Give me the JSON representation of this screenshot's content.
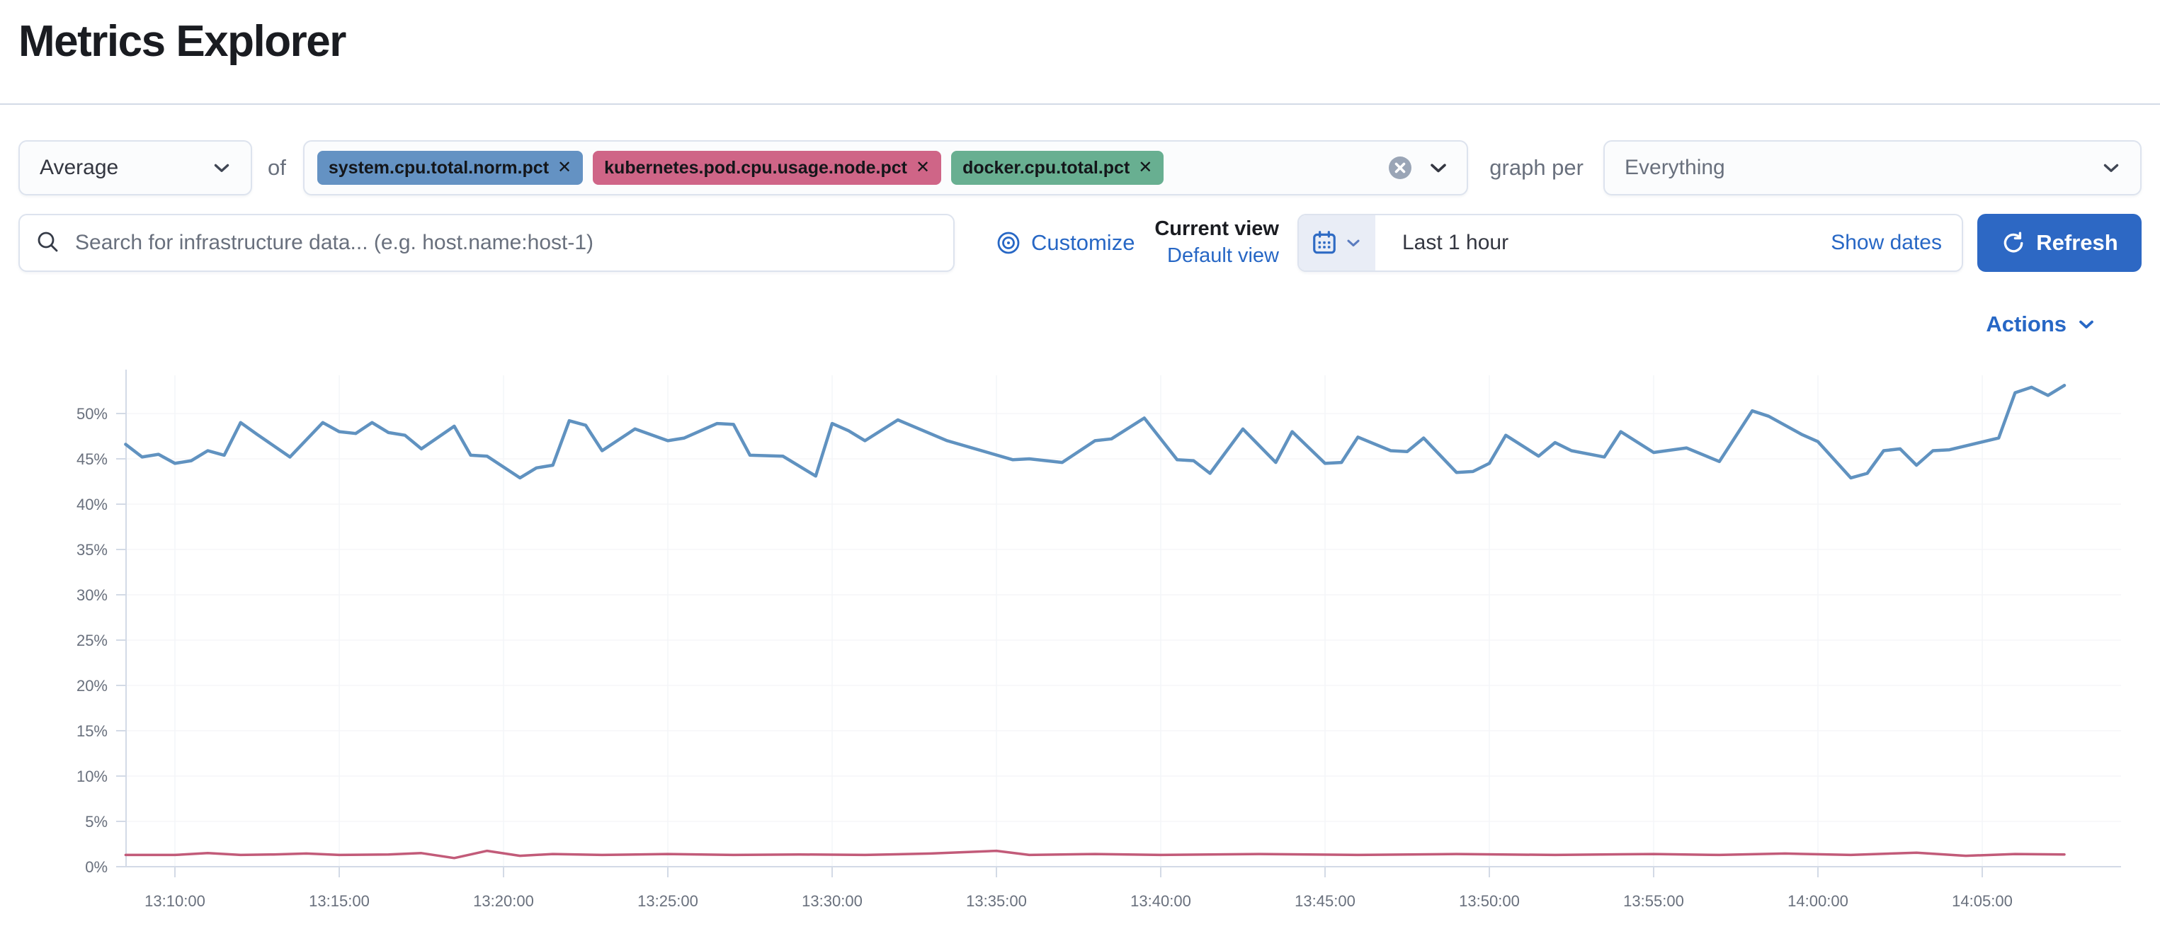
{
  "page": {
    "title": "Metrics Explorer"
  },
  "toolbar": {
    "aggregation_value": "Average",
    "of_label": "of",
    "metrics": [
      {
        "label": "system.cpu.total.norm.pct",
        "color": "#6492C3"
      },
      {
        "label": "kubernetes.pod.cpu.usage.node.pct",
        "color": "#CF6587"
      },
      {
        "label": "docker.cpu.total.pct",
        "color": "#68AF91"
      }
    ],
    "graph_per_label": "graph per",
    "group_by_value": "Everything"
  },
  "filter_bar": {
    "search_placeholder": "Search for infrastructure data... (e.g. host.name:host-1)",
    "customize_label": "Customize",
    "current_view_label": "Current view",
    "default_view_label": "Default view",
    "time_range_value": "Last 1 hour",
    "show_dates_label": "Show dates",
    "refresh_label": "Refresh"
  },
  "chart": {
    "actions_label": "Actions"
  },
  "icons": {
    "search": "magnifier",
    "customize": "bullseye",
    "time_quick_select": "calendar",
    "refresh": "refresh-clockwise",
    "combobox_clear": "cross-in-circle",
    "dropdowns": "chevron-down",
    "tag_remove": "✕"
  },
  "chart_data": {
    "type": "line",
    "title": "",
    "xlabel": "",
    "ylabel": "",
    "ylim": [
      0,
      54
    ],
    "grid": true,
    "legend": "none",
    "y_ticks": [
      "0%",
      "5%",
      "10%",
      "15%",
      "20%",
      "25%",
      "30%",
      "35%",
      "40%",
      "45%",
      "50%"
    ],
    "x_ticks": [
      "13:10:00",
      "13:15:00",
      "13:20:00",
      "13:25:00",
      "13:30:00",
      "13:35:00",
      "13:40:00",
      "13:45:00",
      "13:50:00",
      "13:55:00",
      "14:00:00",
      "14:05:00"
    ],
    "series": [
      {
        "name": "system.cpu.total.norm.pct",
        "color": "#6092C0",
        "points": [
          [
            "13:08:30",
            46.6
          ],
          [
            "13:09:00",
            45.2
          ],
          [
            "13:09:30",
            45.5
          ],
          [
            "13:10:00",
            44.5
          ],
          [
            "13:10:30",
            44.8
          ],
          [
            "13:11:00",
            45.9
          ],
          [
            "13:11:30",
            45.4
          ],
          [
            "13:12:00",
            49.0
          ],
          [
            "13:12:30",
            47.7
          ],
          [
            "13:13:30",
            45.2
          ],
          [
            "13:14:30",
            49.0
          ],
          [
            "13:15:00",
            48.0
          ],
          [
            "13:15:30",
            47.8
          ],
          [
            "13:16:00",
            49.0
          ],
          [
            "13:16:30",
            47.9
          ],
          [
            "13:17:00",
            47.6
          ],
          [
            "13:17:30",
            46.1
          ],
          [
            "13:18:30",
            48.6
          ],
          [
            "13:19:00",
            45.4
          ],
          [
            "13:19:30",
            45.3
          ],
          [
            "13:20:30",
            42.9
          ],
          [
            "13:21:00",
            44.0
          ],
          [
            "13:21:30",
            44.3
          ],
          [
            "13:22:00",
            49.2
          ],
          [
            "13:22:30",
            48.7
          ],
          [
            "13:23:00",
            45.9
          ],
          [
            "13:24:00",
            48.3
          ],
          [
            "13:25:00",
            47.0
          ],
          [
            "13:25:30",
            47.3
          ],
          [
            "13:26:30",
            48.9
          ],
          [
            "13:27:00",
            48.8
          ],
          [
            "13:27:30",
            45.4
          ],
          [
            "13:28:30",
            45.3
          ],
          [
            "13:29:30",
            43.1
          ],
          [
            "13:30:00",
            48.9
          ],
          [
            "13:30:30",
            48.1
          ],
          [
            "13:31:00",
            47.0
          ],
          [
            "13:32:00",
            49.3
          ],
          [
            "13:33:30",
            47.0
          ],
          [
            "13:35:30",
            44.9
          ],
          [
            "13:36:00",
            45.0
          ],
          [
            "13:37:00",
            44.6
          ],
          [
            "13:38:00",
            47.0
          ],
          [
            "13:38:30",
            47.2
          ],
          [
            "13:39:30",
            49.5
          ],
          [
            "13:40:30",
            44.9
          ],
          [
            "13:41:00",
            44.8
          ],
          [
            "13:41:30",
            43.4
          ],
          [
            "13:42:30",
            48.3
          ],
          [
            "13:43:30",
            44.6
          ],
          [
            "13:44:00",
            48.0
          ],
          [
            "13:45:00",
            44.5
          ],
          [
            "13:45:30",
            44.6
          ],
          [
            "13:46:00",
            47.4
          ],
          [
            "13:47:00",
            45.9
          ],
          [
            "13:47:30",
            45.8
          ],
          [
            "13:48:00",
            47.3
          ],
          [
            "13:49:00",
            43.5
          ],
          [
            "13:49:30",
            43.6
          ],
          [
            "13:50:00",
            44.5
          ],
          [
            "13:50:30",
            47.6
          ],
          [
            "13:51:30",
            45.3
          ],
          [
            "13:52:00",
            46.8
          ],
          [
            "13:52:30",
            45.9
          ],
          [
            "13:53:30",
            45.2
          ],
          [
            "13:54:00",
            48.0
          ],
          [
            "13:55:00",
            45.7
          ],
          [
            "13:56:00",
            46.2
          ],
          [
            "13:57:00",
            44.7
          ],
          [
            "13:58:00",
            50.3
          ],
          [
            "13:58:30",
            49.7
          ],
          [
            "13:59:30",
            47.7
          ],
          [
            "14:00:00",
            46.9
          ],
          [
            "14:01:00",
            42.9
          ],
          [
            "14:01:30",
            43.4
          ],
          [
            "14:02:00",
            45.9
          ],
          [
            "14:02:30",
            46.1
          ],
          [
            "14:03:00",
            44.3
          ],
          [
            "14:03:30",
            45.9
          ],
          [
            "14:04:00",
            46.0
          ],
          [
            "14:05:30",
            47.3
          ],
          [
            "14:06:00",
            52.3
          ],
          [
            "14:06:30",
            52.9
          ],
          [
            "14:07:00",
            52.0
          ],
          [
            "14:07:30",
            53.1
          ]
        ]
      },
      {
        "name": "kubernetes.pod.cpu.usage.node.pct",
        "color": "#C25B79",
        "points": [
          [
            "13:08:30",
            1.3
          ],
          [
            "13:10:00",
            1.3
          ],
          [
            "13:11:00",
            1.5
          ],
          [
            "13:12:00",
            1.3
          ],
          [
            "13:13:00",
            1.35
          ],
          [
            "13:14:00",
            1.45
          ],
          [
            "13:15:00",
            1.3
          ],
          [
            "13:16:30",
            1.35
          ],
          [
            "13:17:30",
            1.5
          ],
          [
            "13:18:30",
            0.95
          ],
          [
            "13:19:30",
            1.75
          ],
          [
            "13:20:30",
            1.2
          ],
          [
            "13:21:30",
            1.4
          ],
          [
            "13:23:00",
            1.3
          ],
          [
            "13:25:00",
            1.4
          ],
          [
            "13:27:00",
            1.3
          ],
          [
            "13:29:00",
            1.35
          ],
          [
            "13:31:00",
            1.3
          ],
          [
            "13:33:00",
            1.45
          ],
          [
            "13:35:00",
            1.75
          ],
          [
            "13:36:00",
            1.3
          ],
          [
            "13:38:00",
            1.4
          ],
          [
            "13:40:00",
            1.3
          ],
          [
            "13:43:00",
            1.4
          ],
          [
            "13:46:00",
            1.3
          ],
          [
            "13:49:00",
            1.4
          ],
          [
            "13:52:00",
            1.3
          ],
          [
            "13:55:00",
            1.4
          ],
          [
            "13:57:00",
            1.3
          ],
          [
            "13:59:00",
            1.45
          ],
          [
            "14:01:00",
            1.3
          ],
          [
            "14:03:00",
            1.55
          ],
          [
            "14:04:30",
            1.2
          ],
          [
            "14:06:00",
            1.4
          ],
          [
            "14:07:30",
            1.35
          ]
        ]
      }
    ]
  }
}
